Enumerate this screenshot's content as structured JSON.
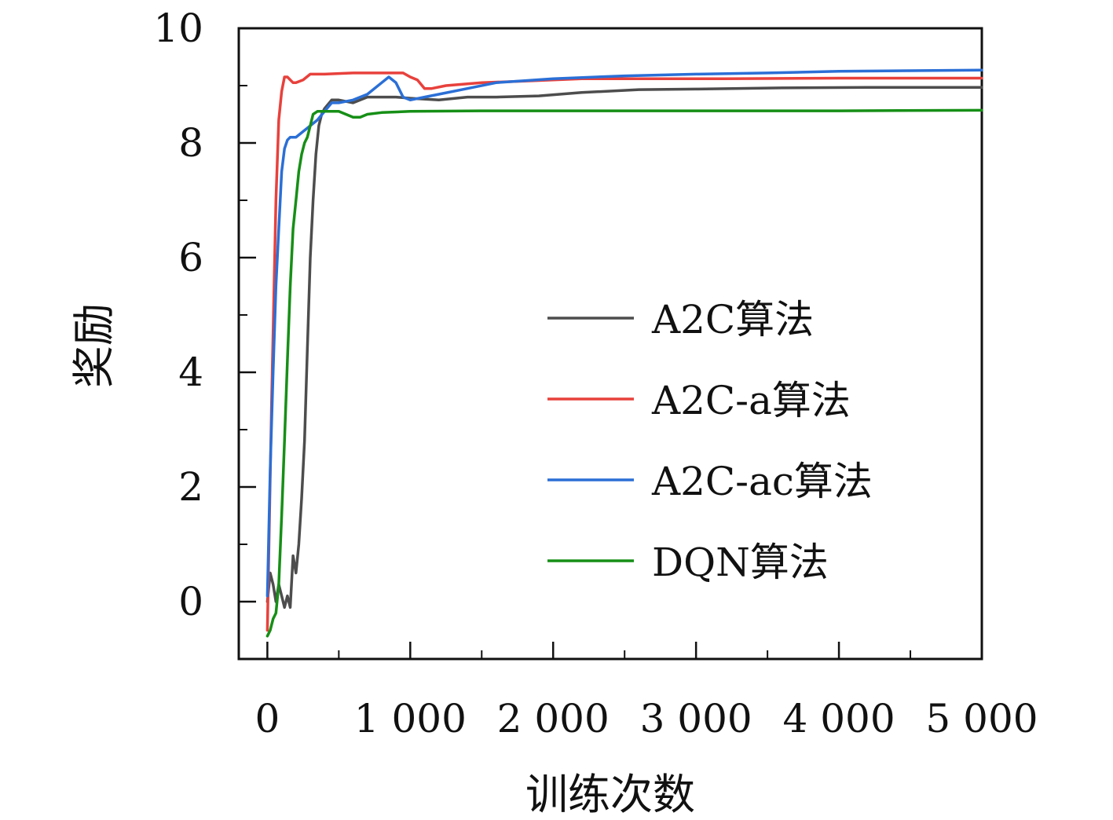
{
  "chart_data": {
    "type": "line",
    "title": "",
    "xlabel": "训练次数",
    "ylabel": "奖励",
    "xlim": [
      -200,
      5000
    ],
    "ylim": [
      -1,
      10
    ],
    "x_ticks": [
      0,
      1000,
      2000,
      3000,
      4000,
      5000
    ],
    "x_tick_labels": [
      "0",
      "1 000",
      "2 000",
      "3 000",
      "4 000",
      "5 000"
    ],
    "y_ticks": [
      0,
      2,
      4,
      6,
      8,
      10
    ],
    "y_tick_labels": [
      "0",
      "2",
      "4",
      "6",
      "8",
      "10"
    ],
    "grid": false,
    "legend_position": "center-right",
    "series": [
      {
        "name": "A2C算法",
        "color": "#4d4d4d",
        "points": [
          [
            0,
            0
          ],
          [
            20,
            0.5
          ],
          [
            40,
            0.3
          ],
          [
            60,
            0
          ],
          [
            80,
            0.3
          ],
          [
            100,
            0.1
          ],
          [
            120,
            -0.1
          ],
          [
            140,
            0.1
          ],
          [
            160,
            -0.1
          ],
          [
            180,
            0.8
          ],
          [
            200,
            0.5
          ],
          [
            220,
            1.0
          ],
          [
            240,
            1.8
          ],
          [
            260,
            2.8
          ],
          [
            280,
            4.4
          ],
          [
            300,
            6.0
          ],
          [
            320,
            7.0
          ],
          [
            340,
            7.8
          ],
          [
            360,
            8.3
          ],
          [
            380,
            8.5
          ],
          [
            400,
            8.6
          ],
          [
            450,
            8.75
          ],
          [
            500,
            8.75
          ],
          [
            600,
            8.7
          ],
          [
            700,
            8.8
          ],
          [
            800,
            8.8
          ],
          [
            900,
            8.8
          ],
          [
            1000,
            8.78
          ],
          [
            1200,
            8.75
          ],
          [
            1400,
            8.8
          ],
          [
            1600,
            8.8
          ],
          [
            1900,
            8.82
          ],
          [
            2200,
            8.88
          ],
          [
            2600,
            8.93
          ],
          [
            3000,
            8.94
          ],
          [
            3600,
            8.96
          ],
          [
            4200,
            8.97
          ],
          [
            4800,
            8.97
          ],
          [
            5000,
            8.97
          ]
        ]
      },
      {
        "name": "A2C-a算法",
        "color": "#e8413c",
        "points": [
          [
            0,
            -0.5
          ],
          [
            30,
            3.5
          ],
          [
            60,
            7.0
          ],
          [
            80,
            8.4
          ],
          [
            100,
            8.9
          ],
          [
            120,
            9.15
          ],
          [
            140,
            9.15
          ],
          [
            160,
            9.1
          ],
          [
            180,
            9.05
          ],
          [
            200,
            9.05
          ],
          [
            250,
            9.1
          ],
          [
            300,
            9.2
          ],
          [
            400,
            9.2
          ],
          [
            600,
            9.22
          ],
          [
            800,
            9.22
          ],
          [
            950,
            9.22
          ],
          [
            1000,
            9.15
          ],
          [
            1050,
            9.1
          ],
          [
            1100,
            8.95
          ],
          [
            1150,
            8.95
          ],
          [
            1250,
            9.0
          ],
          [
            1500,
            9.05
          ],
          [
            1800,
            9.08
          ],
          [
            2200,
            9.12
          ],
          [
            2600,
            9.12
          ],
          [
            3200,
            9.12
          ],
          [
            4000,
            9.13
          ],
          [
            4600,
            9.13
          ],
          [
            5000,
            9.13
          ]
        ]
      },
      {
        "name": "A2C-ac算法",
        "color": "#2b6fd6",
        "points": [
          [
            0,
            0.1
          ],
          [
            20,
            2.3
          ],
          [
            40,
            4.0
          ],
          [
            60,
            5.5
          ],
          [
            80,
            6.5
          ],
          [
            100,
            7.5
          ],
          [
            120,
            7.9
          ],
          [
            140,
            8.05
          ],
          [
            160,
            8.1
          ],
          [
            200,
            8.1
          ],
          [
            250,
            8.2
          ],
          [
            300,
            8.3
          ],
          [
            350,
            8.4
          ],
          [
            400,
            8.55
          ],
          [
            450,
            8.7
          ],
          [
            500,
            8.7
          ],
          [
            600,
            8.75
          ],
          [
            700,
            8.85
          ],
          [
            800,
            9.05
          ],
          [
            850,
            9.15
          ],
          [
            900,
            9.05
          ],
          [
            950,
            8.8
          ],
          [
            1000,
            8.75
          ],
          [
            1100,
            8.8
          ],
          [
            1200,
            8.85
          ],
          [
            1400,
            8.95
          ],
          [
            1600,
            9.05
          ],
          [
            2000,
            9.12
          ],
          [
            2500,
            9.17
          ],
          [
            3000,
            9.2
          ],
          [
            3500,
            9.22
          ],
          [
            4000,
            9.25
          ],
          [
            4500,
            9.26
          ],
          [
            5000,
            9.27
          ]
        ]
      },
      {
        "name": "DQN算法",
        "color": "#168f16",
        "points": [
          [
            0,
            -0.6
          ],
          [
            20,
            -0.5
          ],
          [
            40,
            -0.3
          ],
          [
            60,
            -0.2
          ],
          [
            80,
            0.3
          ],
          [
            100,
            1.5
          ],
          [
            120,
            2.8
          ],
          [
            140,
            4.2
          ],
          [
            160,
            5.5
          ],
          [
            180,
            6.5
          ],
          [
            200,
            7.0
          ],
          [
            220,
            7.5
          ],
          [
            240,
            7.8
          ],
          [
            260,
            8.0
          ],
          [
            280,
            8.1
          ],
          [
            300,
            8.3
          ],
          [
            320,
            8.5
          ],
          [
            350,
            8.55
          ],
          [
            400,
            8.55
          ],
          [
            500,
            8.55
          ],
          [
            600,
            8.45
          ],
          [
            650,
            8.45
          ],
          [
            700,
            8.5
          ],
          [
            800,
            8.53
          ],
          [
            1000,
            8.55
          ],
          [
            1500,
            8.56
          ],
          [
            2000,
            8.56
          ],
          [
            3000,
            8.56
          ],
          [
            4000,
            8.56
          ],
          [
            5000,
            8.57
          ]
        ]
      }
    ]
  }
}
